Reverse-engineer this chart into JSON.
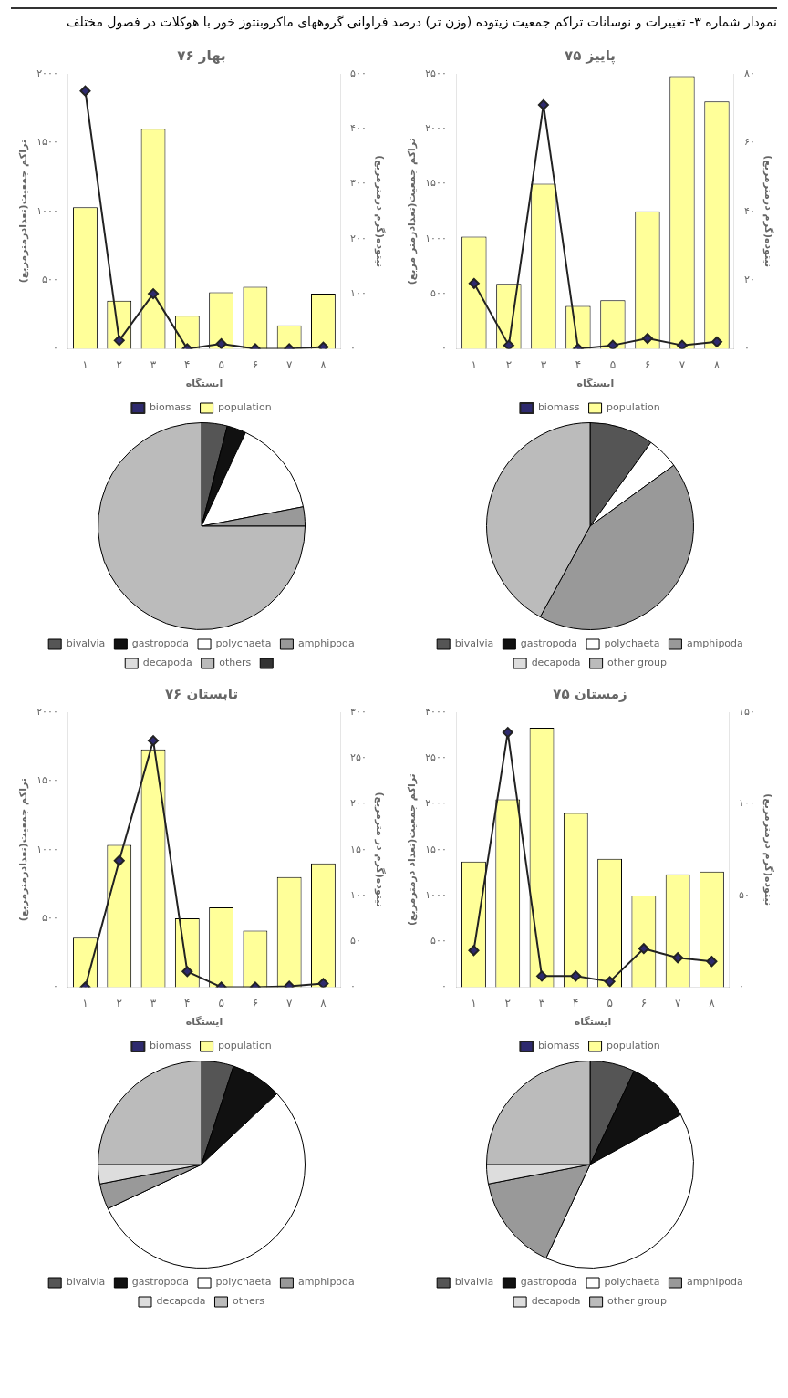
{
  "chart_data": [
    {
      "type": "other",
      "title": "نمودار شماره ۳- تغییرات و نوسانات تراکم جمعیت زیتوده (وزن تر) درصد فراوانی گروههای ماکروبنتوز خور با هوکلات در فصول مختلف"
    },
    {
      "type": "bar",
      "title": "پاییز ۷۵",
      "xlabel": "ایستگاه",
      "ylabel": "تراکم جمعیت(تعدادرمتر مربع)",
      "y2label": "نیتوده(گرم درمترمربع)",
      "categories": [
        "۱",
        "۲",
        "۳",
        "۴",
        "۵",
        "۶",
        "۷",
        "۸"
      ],
      "series": [
        {
          "name": "population",
          "type": "bar",
          "color": "#ffff99",
          "values": [
            1020,
            590,
            1500,
            390,
            440,
            1250,
            2480,
            2250
          ]
        },
        {
          "name": "biomass",
          "type": "line",
          "axis": "y2",
          "color": "#2e2a6e",
          "values": [
            19,
            1,
            71,
            0,
            1,
            3,
            1,
            2
          ]
        }
      ],
      "ylim": [
        0,
        2500
      ],
      "yticks": [
        {
          "value": 0,
          "label": "۰"
        },
        {
          "value": 500,
          "label": "۵۰۰"
        },
        {
          "value": 1000,
          "label": "۱۰۰۰"
        },
        {
          "value": 1500,
          "label": "۱۵۰۰"
        },
        {
          "value": 2000,
          "label": "۲۰۰۰"
        },
        {
          "value": 2500,
          "label": "۲۵۰۰"
        }
      ],
      "y2lim": [
        0,
        80
      ],
      "y2ticks": [
        {
          "value": 0,
          "label": "۰"
        },
        {
          "value": 20,
          "label": "۲۰"
        },
        {
          "value": 40,
          "label": "۴۰"
        },
        {
          "value": 60,
          "label": "۶۰"
        },
        {
          "value": 80,
          "label": "۸۰"
        }
      ],
      "legend": "bottom",
      "marker": "diamond"
    },
    {
      "type": "pie",
      "categories": [
        "bivalvia",
        "gastropoda",
        "polychaeta",
        "amphipoda",
        "decapoda",
        "other group"
      ],
      "values": [
        10,
        0,
        5,
        43,
        0,
        42
      ],
      "colors": [
        "#555555",
        "#111111",
        "#ffffff",
        "#999999",
        "#dddddd",
        "#bbbbbb"
      ],
      "legend": "bottom"
    },
    {
      "type": "bar",
      "title": "بهار ۷۶",
      "xlabel": "ایستگاه",
      "ylabel": "تراکم جمعیت(تعدادرمترمربع)",
      "y2label": "نیتوده(گرم درمترمربع)",
      "categories": [
        "۱",
        "۲",
        "۳",
        "۴",
        "۵",
        "۶",
        "۷",
        "۸"
      ],
      "series": [
        {
          "name": "population",
          "type": "bar",
          "color": "#ffff99",
          "values": [
            1030,
            350,
            1600,
            240,
            410,
            450,
            170,
            400
          ]
        },
        {
          "name": "biomass",
          "type": "line",
          "axis": "y2",
          "color": "#2e2a6e",
          "values": [
            469,
            15,
            100,
            0,
            9,
            0,
            0,
            3
          ]
        }
      ],
      "ylim": [
        0,
        2000
      ],
      "yticks": [
        {
          "value": 0,
          "label": "۰"
        },
        {
          "value": 500,
          "label": "۵۰۰"
        },
        {
          "value": 1000,
          "label": "۱۰۰۰"
        },
        {
          "value": 1500,
          "label": "۱۵۰۰"
        },
        {
          "value": 2000,
          "label": "۲۰۰۰"
        }
      ],
      "y2lim": [
        0,
        500
      ],
      "y2ticks": [
        {
          "value": 0,
          "label": "۰"
        },
        {
          "value": 100,
          "label": "۱۰۰"
        },
        {
          "value": 200,
          "label": "۲۰۰"
        },
        {
          "value": 300,
          "label": "۳۰۰"
        },
        {
          "value": 400,
          "label": "۴۰۰"
        },
        {
          "value": 500,
          "label": "۵۰۰"
        }
      ],
      "legend": "bottom",
      "marker": "diamond"
    },
    {
      "type": "pie",
      "categories": [
        "bivalvia",
        "gastropoda",
        "polychaeta",
        "amphipoda",
        "decapoda",
        "others",
        null
      ],
      "values": [
        4,
        3,
        15,
        3,
        0,
        75,
        0
      ],
      "colors": [
        "#555555",
        "#111111",
        "#ffffff",
        "#999999",
        "#dddddd",
        "#bbbbbb",
        "#333333"
      ],
      "legend": "bottom"
    },
    {
      "type": "bar",
      "title": "زمستان ۷۵",
      "xlabel": "ایستگاه",
      "ylabel": "تراکم جمعیت(تعداد درمترمربع)",
      "y2label": "نیتوده(گرم درمترمربع)",
      "categories": [
        "۱",
        "۲",
        "۳",
        "۴",
        "۵",
        "۶",
        "۷",
        "۸"
      ],
      "series": [
        {
          "name": "population",
          "type": "bar",
          "color": "#ffff99",
          "values": [
            1370,
            2050,
            2830,
            1900,
            1400,
            1000,
            1230,
            1260
          ]
        },
        {
          "name": "biomass",
          "type": "line",
          "axis": "y2",
          "color": "#2e2a6e",
          "values": [
            20,
            139,
            6,
            6,
            3,
            21,
            16,
            14
          ]
        }
      ],
      "ylim": [
        0,
        3000
      ],
      "yticks": [
        {
          "value": 0,
          "label": "۰"
        },
        {
          "value": 500,
          "label": "۵۰۰"
        },
        {
          "value": 1000,
          "label": "۱۰۰۰"
        },
        {
          "value": 1500,
          "label": "۱۵۰۰"
        },
        {
          "value": 2000,
          "label": "۲۰۰۰"
        },
        {
          "value": 2500,
          "label": "۲۵۰۰"
        },
        {
          "value": 3000,
          "label": "۳۰۰۰"
        }
      ],
      "y2lim": [
        0,
        150
      ],
      "y2ticks": [
        {
          "value": 0,
          "label": "۰"
        },
        {
          "value": 50,
          "label": "۵۰"
        },
        {
          "value": 100,
          "label": "۱۰۰"
        },
        {
          "value": 150,
          "label": "۱۵۰"
        }
      ],
      "legend": "bottom",
      "marker": "diamond"
    },
    {
      "type": "pie",
      "categories": [
        "bivalvia",
        "gastropoda",
        "polychaeta",
        "amphipoda",
        "decapoda",
        "other group"
      ],
      "values": [
        7,
        10,
        40,
        15,
        3,
        25
      ],
      "colors": [
        "#555555",
        "#111111",
        "#ffffff",
        "#999999",
        "#dddddd",
        "#bbbbbb"
      ],
      "legend": "bottom"
    },
    {
      "type": "bar",
      "title": "تابستان ۷۶",
      "xlabel": "ایستگاه",
      "ylabel": "تراکم جمعیت(تعدادرمترمربع)",
      "y2label": "نیتوده(گرم در مترمربع)",
      "categories": [
        "۱",
        "۲",
        "۳",
        "۴",
        "۵",
        "۶",
        "۷",
        "۸"
      ],
      "series": [
        {
          "name": "population",
          "type": "bar",
          "color": "#ffff99",
          "values": [
            360,
            1035,
            1730,
            500,
            580,
            410,
            800,
            900
          ]
        },
        {
          "name": "biomass",
          "type": "line",
          "axis": "y2",
          "color": "#2e2a6e",
          "values": [
            0,
            138,
            269,
            17,
            0,
            0,
            1,
            4
          ]
        }
      ],
      "ylim": [
        0,
        2000
      ],
      "yticks": [
        {
          "value": 0,
          "label": "۰"
        },
        {
          "value": 500,
          "label": "۵۰۰"
        },
        {
          "value": 1000,
          "label": "۱۰۰۰"
        },
        {
          "value": 1500,
          "label": "۱۵۰۰"
        },
        {
          "value": 2000,
          "label": "۲۰۰۰"
        }
      ],
      "y2lim": [
        0,
        300
      ],
      "y2ticks": [
        {
          "value": 0,
          "label": "۰"
        },
        {
          "value": 50,
          "label": "۵۰"
        },
        {
          "value": 100,
          "label": "۱۰۰"
        },
        {
          "value": 150,
          "label": "۱۵۰"
        },
        {
          "value": 200,
          "label": "۲۰۰"
        },
        {
          "value": 250,
          "label": "۲۵۰"
        },
        {
          "value": 300,
          "label": "۳۰۰"
        }
      ],
      "legend": "bottom",
      "marker": "diamond"
    },
    {
      "type": "pie",
      "categories": [
        "bivalvia",
        "gastropoda",
        "polychaeta",
        "amphipoda",
        "decapoda",
        "others"
      ],
      "values": [
        5,
        8,
        55,
        4,
        3,
        25
      ],
      "colors": [
        "#555555",
        "#111111",
        "#ffffff",
        "#999999",
        "#dddddd",
        "#bbbbbb"
      ],
      "legend": "bottom"
    }
  ]
}
